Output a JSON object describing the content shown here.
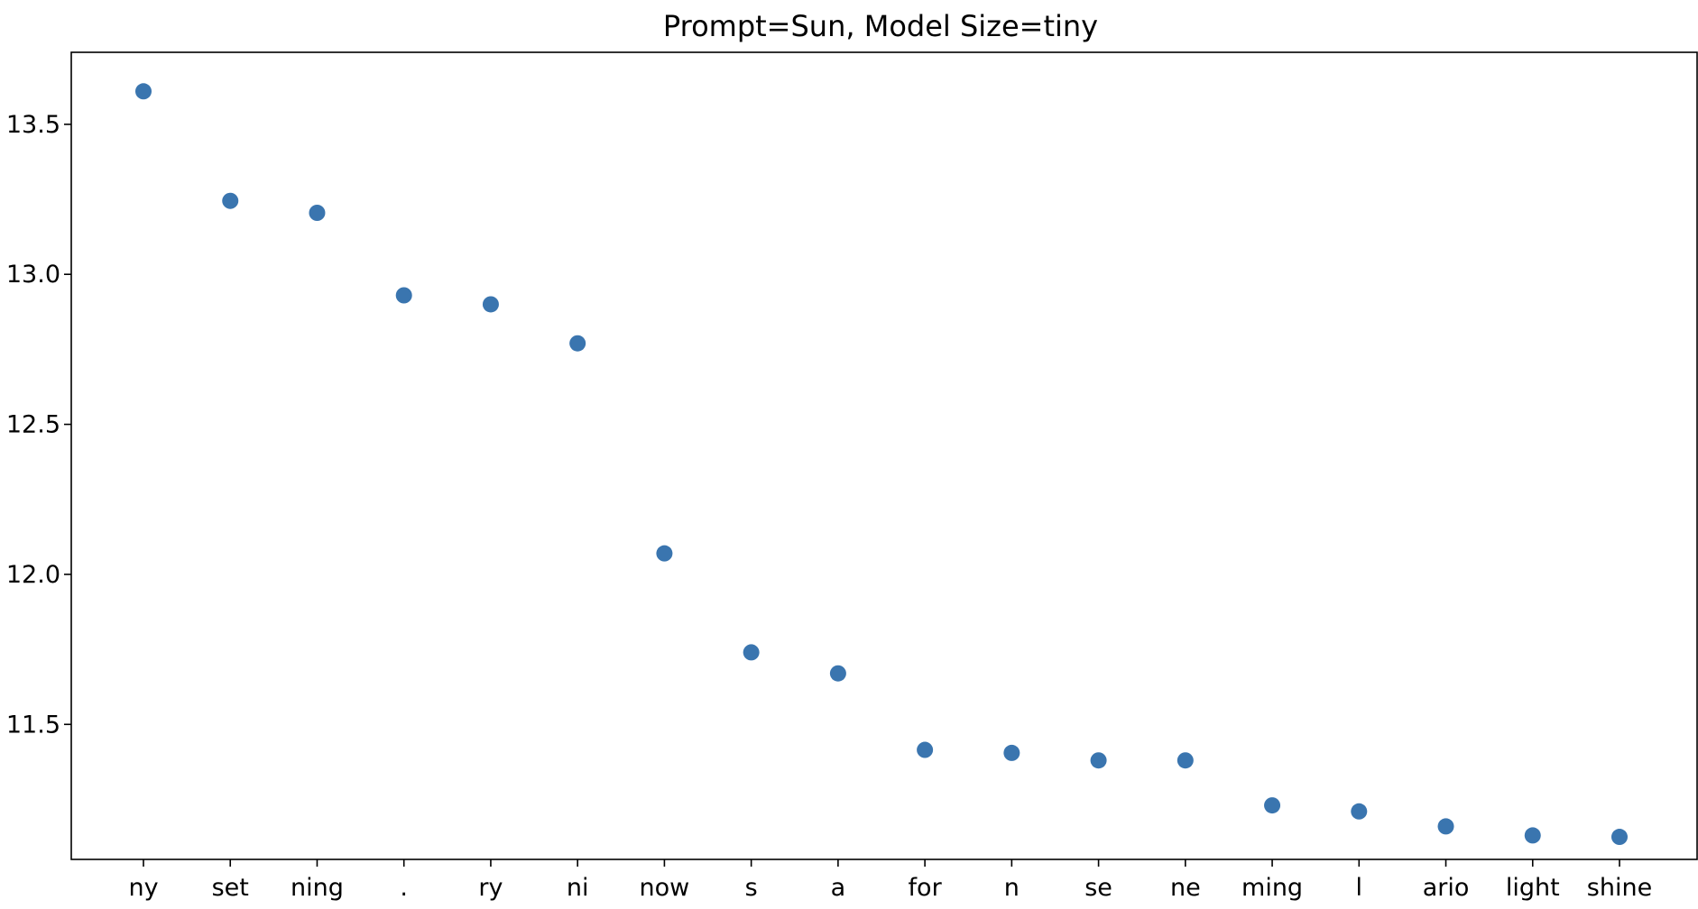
{
  "chart_data": {
    "type": "scatter",
    "title": "Prompt=Sun, Model Size=tiny",
    "xlabel": "",
    "ylabel": "",
    "categories": [
      "ny",
      "set",
      "ning",
      ".",
      "ry",
      "ni",
      "now",
      "s",
      "a",
      "for",
      "n",
      "se",
      "ne",
      "ming",
      "l",
      "ario",
      "light",
      "shine"
    ],
    "values": [
      13.61,
      13.245,
      13.205,
      12.93,
      12.9,
      12.77,
      12.07,
      11.74,
      11.67,
      11.415,
      11.405,
      11.38,
      11.38,
      11.23,
      11.21,
      11.16,
      11.13,
      11.125
    ],
    "ylim": [
      11.05,
      13.74
    ],
    "yticks": [
      11.5,
      12.0,
      12.5,
      13.0,
      13.5
    ],
    "ytick_labels": [
      "11.5",
      "12.0",
      "12.5",
      "13.0",
      "13.5"
    ],
    "grid": false,
    "marker_color": "#3a75af"
  }
}
